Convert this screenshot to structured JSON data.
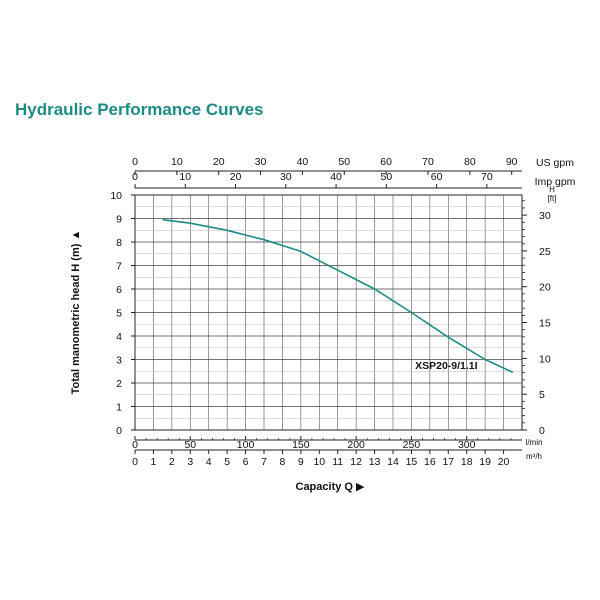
{
  "title": "Hydraulic Performance Curves",
  "chart_data": {
    "type": "line",
    "title": "Hydraulic Performance Curves",
    "xlabel": "Capacity Q",
    "ylabel": "Total manometric head H (m)",
    "xlim_m3h": [
      0,
      21
    ],
    "ylim_m": [
      0,
      10
    ],
    "grid": true,
    "axes": {
      "left": {
        "unit": "",
        "ticks": [
          "0",
          "1",
          "2",
          "3",
          "4",
          "5",
          "6",
          "7",
          "8",
          "9",
          "10"
        ]
      },
      "right": {
        "unit_top": "H",
        "unit_bottom": "[ft]",
        "ticks": [
          "0",
          "5",
          "10",
          "15",
          "20",
          "25",
          "30"
        ]
      },
      "bottom1": {
        "unit": "l/min",
        "ticks": [
          "0",
          "50",
          "100",
          "150",
          "200",
          "250",
          "300"
        ]
      },
      "bottom2": {
        "unit": "m³/h",
        "ticks": [
          "0",
          "1",
          "2",
          "3",
          "4",
          "5",
          "6",
          "7",
          "8",
          "9",
          "10",
          "11",
          "12",
          "13",
          "14",
          "15",
          "16",
          "17",
          "18",
          "19",
          "20"
        ]
      },
      "top1": {
        "unit": "US gpm",
        "ticks": [
          "0",
          "10",
          "20",
          "30",
          "40",
          "50",
          "60",
          "70",
          "80",
          "90"
        ]
      },
      "top2": {
        "unit": "Imp gpm",
        "ticks": [
          "0",
          "10",
          "20",
          "30",
          "40",
          "50",
          "60",
          "70"
        ]
      }
    },
    "series": [
      {
        "name": "XSP20-9/1.1I",
        "color": "#1e8a84",
        "x_m3h": [
          1.5,
          3,
          5,
          7,
          9,
          11,
          13,
          15,
          17,
          19,
          20.5
        ],
        "y_m": [
          8.95,
          8.8,
          8.5,
          8.1,
          7.6,
          6.8,
          6.0,
          5.0,
          3.95,
          3.0,
          2.45
        ]
      }
    ]
  }
}
